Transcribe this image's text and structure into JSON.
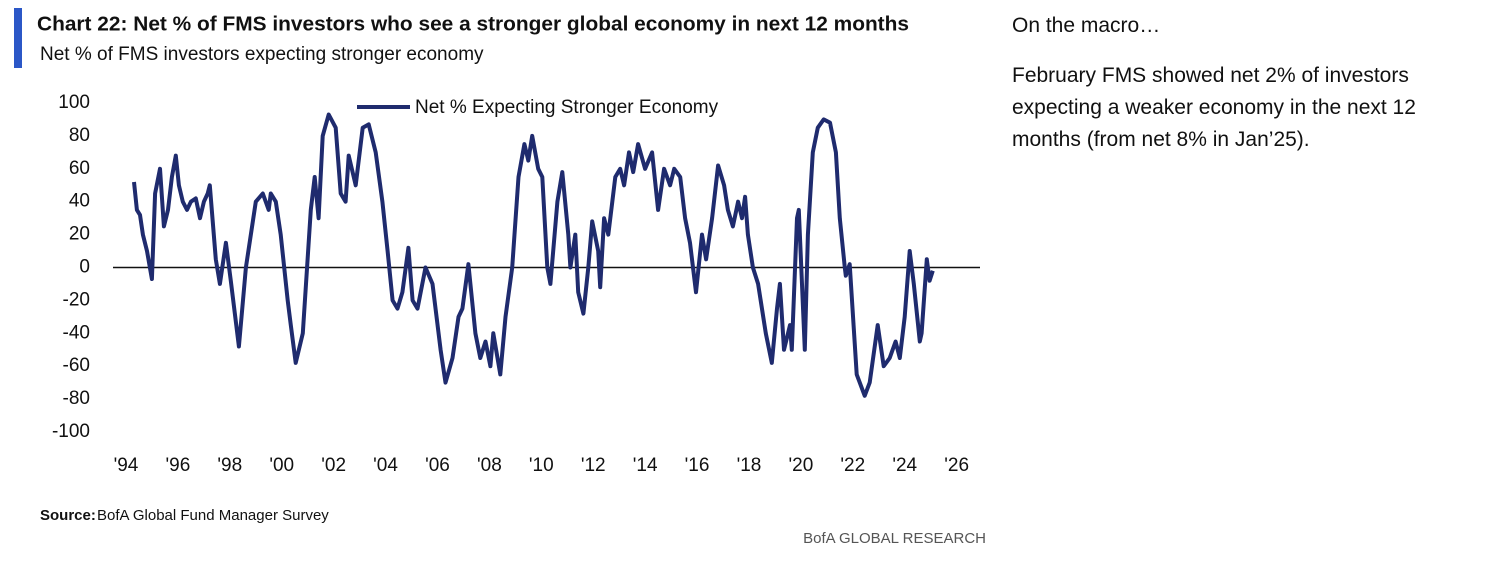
{
  "chart_data": {
    "type": "line",
    "title": "Chart 22: Net % of FMS investors who see a stronger global economy in next 12 months",
    "subtitle": "Net % of FMS investors expecting stronger economy",
    "x": [
      1994.31,
      1994.42,
      1994.54,
      1994.65,
      1994.81,
      1995.0,
      1995.12,
      1995.31,
      1995.46,
      1995.62,
      1995.77,
      1995.92,
      1996.04,
      1996.19,
      1996.35,
      1996.5,
      1996.69,
      1996.85,
      1997.0,
      1997.15,
      1997.23,
      1997.46,
      1997.62,
      1997.85,
      1998.04,
      1998.35,
      1998.62,
      1999.0,
      1999.27,
      1999.5,
      1999.58,
      1999.77,
      1999.96,
      2000.23,
      2000.35,
      2000.54,
      2000.81,
      2001.12,
      2001.27,
      2001.42,
      2001.58,
      2001.81,
      2002.08,
      2002.27,
      2002.46,
      2002.58,
      2002.85,
      2003.12,
      2003.35,
      2003.62,
      2003.88,
      2004.08,
      2004.27,
      2004.46,
      2004.65,
      2004.88,
      2005.04,
      2005.23,
      2005.54,
      2005.81,
      2006.12,
      2006.31,
      2006.58,
      2006.81,
      2006.96,
      2007.19,
      2007.46,
      2007.65,
      2007.85,
      2008.04,
      2008.15,
      2008.42,
      2008.62,
      2008.88,
      2009.12,
      2009.35,
      2009.5,
      2009.65,
      2009.88,
      2010.04,
      2010.23,
      2010.35,
      2010.62,
      2010.81,
      2011.04,
      2011.12,
      2011.31,
      2011.42,
      2011.62,
      2011.81,
      2011.96,
      2012.19,
      2012.27,
      2012.42,
      2012.58,
      2012.85,
      2013.04,
      2013.19,
      2013.38,
      2013.54,
      2013.73,
      2014.0,
      2014.27,
      2014.5,
      2014.73,
      2014.96,
      2015.12,
      2015.35,
      2015.54,
      2015.73,
      2015.96,
      2016.19,
      2016.35,
      2016.58,
      2016.81,
      2017.04,
      2017.19,
      2017.38,
      2017.58,
      2017.73,
      2017.85,
      2017.96,
      2018.15,
      2018.35,
      2018.65,
      2018.88,
      2019.08,
      2019.19,
      2019.35,
      2019.58,
      2019.65,
      2019.85,
      2019.92,
      2020.15,
      2020.27,
      2020.46,
      2020.65,
      2020.88,
      2021.12,
      2021.35,
      2021.5,
      2021.69,
      2021.73,
      2021.88,
      2022.15,
      2022.46,
      2022.65,
      2022.96,
      2023.19,
      2023.42,
      2023.65,
      2023.81,
      2024.0,
      2024.19,
      2024.35,
      2024.58,
      2024.65,
      2024.85,
      2024.96,
      2025.08
    ],
    "series": [
      {
        "name": "Net % Expecting Stronger Economy",
        "color": "#1f2b6e",
        "values": [
          52,
          35,
          32,
          20,
          10,
          -7,
          45,
          60,
          25,
          35,
          55,
          68,
          50,
          40,
          35,
          40,
          42,
          30,
          40,
          45,
          50,
          5,
          -10,
          15,
          -8,
          -48,
          0,
          40,
          45,
          35,
          45,
          40,
          20,
          -20,
          -35,
          -58,
          -40,
          35,
          55,
          30,
          80,
          93,
          85,
          45,
          40,
          68,
          50,
          85,
          87,
          70,
          40,
          10,
          -20,
          -25,
          -15,
          12,
          -20,
          -25,
          0,
          -10,
          -50,
          -70,
          -55,
          -30,
          -25,
          2,
          -40,
          -55,
          -45,
          -60,
          -40,
          -65,
          -30,
          0,
          55,
          75,
          65,
          80,
          60,
          55,
          0,
          -10,
          40,
          58,
          20,
          0,
          20,
          -15,
          -28,
          0,
          28,
          10,
          -12,
          30,
          20,
          55,
          60,
          50,
          70,
          58,
          75,
          60,
          70,
          35,
          60,
          50,
          60,
          55,
          30,
          15,
          -15,
          20,
          5,
          30,
          62,
          50,
          35,
          25,
          40,
          30,
          43,
          20,
          0,
          -10,
          -40,
          -58,
          -25,
          -10,
          -50,
          -35,
          -50,
          30,
          35,
          -50,
          20,
          70,
          85,
          90,
          88,
          70,
          30,
          0,
          -5,
          2,
          -65,
          -78,
          -70,
          -35,
          -60,
          -55,
          -45,
          -55,
          -30,
          10,
          -10,
          -45,
          -40,
          5,
          -8,
          -2
        ]
      }
    ],
    "xlim": [
      1993.5,
      2026.9
    ],
    "xticks": [
      {
        "value": 1994,
        "label": "'94"
      },
      {
        "value": 1996,
        "label": "'96"
      },
      {
        "value": 1998,
        "label": "'98"
      },
      {
        "value": 2000,
        "label": "'00"
      },
      {
        "value": 2002,
        "label": "'02"
      },
      {
        "value": 2004,
        "label": "'04"
      },
      {
        "value": 2006,
        "label": "'06"
      },
      {
        "value": 2008,
        "label": "'08"
      },
      {
        "value": 2010,
        "label": "'10"
      },
      {
        "value": 2012,
        "label": "'12"
      },
      {
        "value": 2014,
        "label": "'14"
      },
      {
        "value": 2016,
        "label": "'16"
      },
      {
        "value": 2018,
        "label": "'18"
      },
      {
        "value": 2020,
        "label": "'20"
      },
      {
        "value": 2022,
        "label": "'22"
      },
      {
        "value": 2024,
        "label": "'24"
      },
      {
        "value": 2026,
        "label": "'26"
      }
    ],
    "ylim": [
      -100,
      100
    ],
    "yticks": [
      -100,
      -80,
      -60,
      -40,
      -20,
      0,
      20,
      40,
      60,
      80,
      100
    ],
    "source_label": "Source:",
    "source": "BofA Global Fund Manager Survey",
    "brand": "BofA GLOBAL RESEARCH"
  },
  "commentary": {
    "heading": "On the macro…",
    "body": "February FMS showed net 2% of investors expecting a weaker economy in the next 12 months (from net 8% in Jan’25)."
  }
}
